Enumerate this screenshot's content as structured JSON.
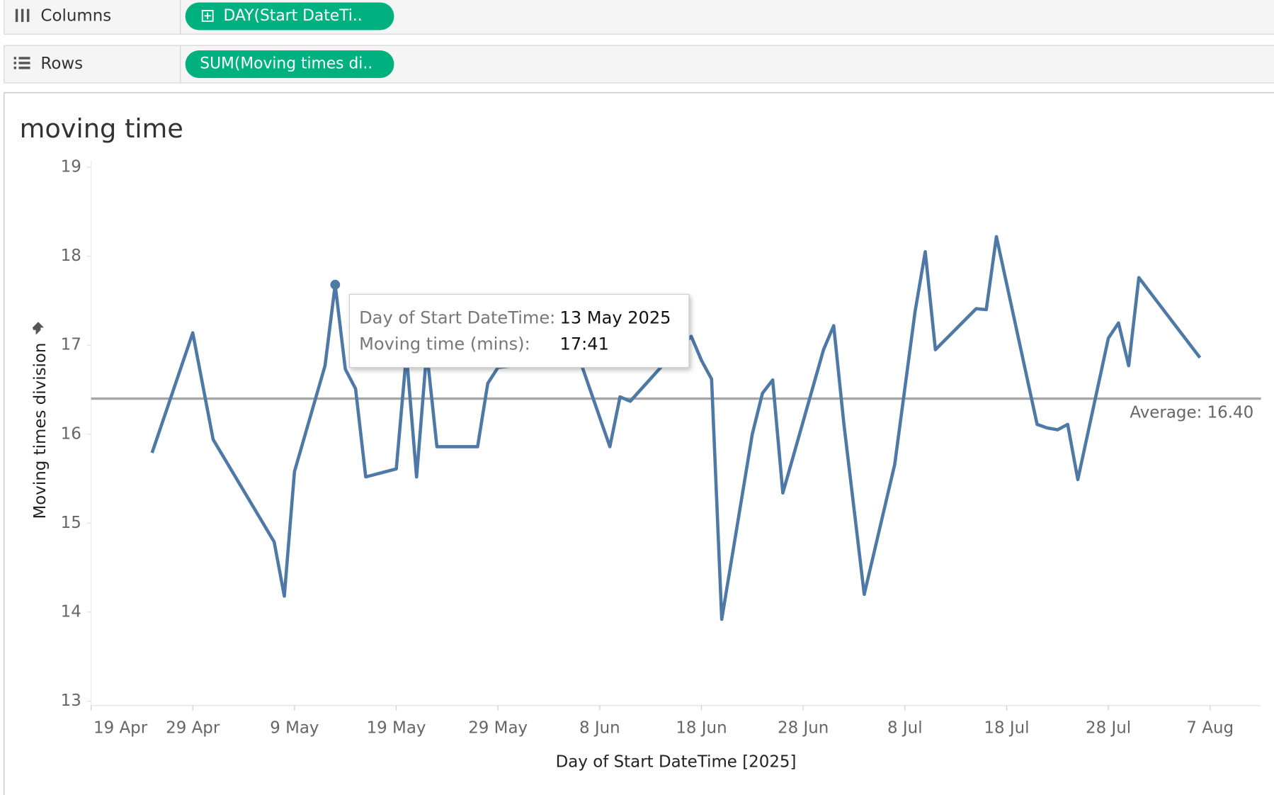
{
  "shelves": {
    "columns": {
      "label": "Columns",
      "pill": "DAY(Start DateTi.."
    },
    "rows": {
      "label": "Rows",
      "pill": "SUM(Moving times di.."
    }
  },
  "chart_data": {
    "type": "line",
    "title": "moving time",
    "x_label": "Day of Start DateTime [2025]",
    "y_label": "Moving times division",
    "color": "#4e79a7",
    "x": [
      "2025-04-25",
      "2025-04-29",
      "2025-05-01",
      "2025-05-07",
      "2025-05-08",
      "2025-05-09",
      "2025-05-12",
      "2025-05-13",
      "2025-05-14",
      "2025-05-15",
      "2025-05-16",
      "2025-05-19",
      "2025-05-20",
      "2025-05-21",
      "2025-05-22",
      "2025-05-23",
      "2025-05-27",
      "2025-05-28",
      "2025-05-29",
      "2025-06-06",
      "2025-06-09",
      "2025-06-10",
      "2025-06-11",
      "2025-06-14",
      "2025-06-17",
      "2025-06-18",
      "2025-06-19",
      "2025-06-20",
      "2025-06-23",
      "2025-06-24",
      "2025-06-25",
      "2025-06-26",
      "2025-06-30",
      "2025-07-01",
      "2025-07-02",
      "2025-07-04",
      "2025-07-07",
      "2025-07-09",
      "2025-07-10",
      "2025-07-11",
      "2025-07-15",
      "2025-07-16",
      "2025-07-17",
      "2025-07-21",
      "2025-07-22",
      "2025-07-23",
      "2025-07-24",
      "2025-07-25",
      "2025-07-28",
      "2025-07-29",
      "2025-07-30",
      "2025-07-31",
      "2025-08-06"
    ],
    "values": [
      15.79,
      17.14,
      15.94,
      14.79,
      14.18,
      15.58,
      16.77,
      17.68,
      16.73,
      16.51,
      15.52,
      15.61,
      16.9,
      15.52,
      16.93,
      15.86,
      15.86,
      16.57,
      16.75,
      16.85,
      15.86,
      16.42,
      16.37,
      16.75,
      17.1,
      16.83,
      16.62,
      13.92,
      16.0,
      16.46,
      16.61,
      15.34,
      16.95,
      17.22,
      16.12,
      14.2,
      15.66,
      17.38,
      18.05,
      16.95,
      17.41,
      17.4,
      18.22,
      16.11,
      16.07,
      16.05,
      16.11,
      15.49,
      17.08,
      17.25,
      16.77,
      17.76,
      16.86
    ],
    "xlim": [
      "2025-04-19",
      "2025-08-12"
    ],
    "xticks": [
      {
        "value": "2025-04-19",
        "label": "19 Apr"
      },
      {
        "value": "2025-04-29",
        "label": "29 Apr"
      },
      {
        "value": "2025-05-09",
        "label": "9 May"
      },
      {
        "value": "2025-05-19",
        "label": "19 May"
      },
      {
        "value": "2025-05-29",
        "label": "29 May"
      },
      {
        "value": "2025-06-08",
        "label": "8 Jun"
      },
      {
        "value": "2025-06-18",
        "label": "18 Jun"
      },
      {
        "value": "2025-06-28",
        "label": "28 Jun"
      },
      {
        "value": "2025-07-08",
        "label": "8 Jul"
      },
      {
        "value": "2025-07-18",
        "label": "18 Jul"
      },
      {
        "value": "2025-07-28",
        "label": "28 Jul"
      },
      {
        "value": "2025-08-07",
        "label": "7 Aug"
      }
    ],
    "ylim": [
      12.95,
      19.08
    ],
    "yticks": [
      13,
      14,
      15,
      16,
      17,
      18,
      19
    ],
    "reference_line": {
      "value": 16.4,
      "label": "Average: 16.40"
    },
    "tooltip": {
      "point": 7,
      "fields": [
        {
          "label": "Day of Start DateTime:",
          "value": "13 May 2025"
        },
        {
          "label": "Moving time (mins):",
          "value": "17:41"
        }
      ]
    }
  }
}
